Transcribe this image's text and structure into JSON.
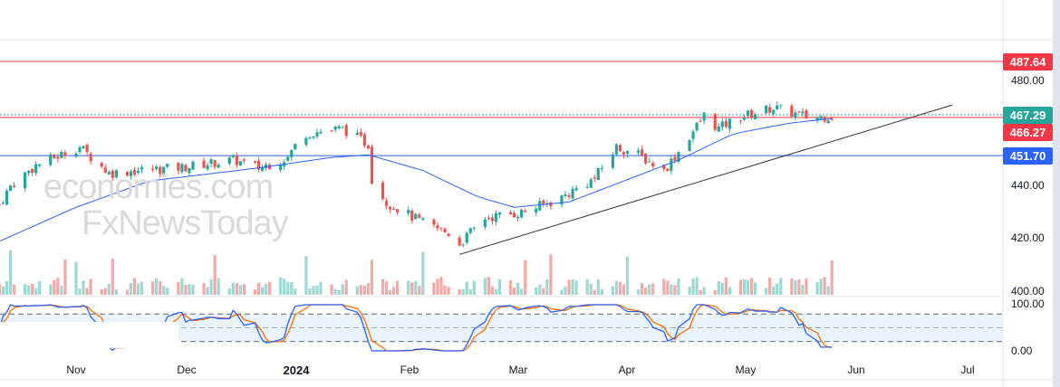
{
  "chart_data": {
    "type": "candlestick",
    "title": "",
    "price_axis": {
      "ticks": [
        "480.00",
        "440.00",
        "420.00",
        "400.00"
      ],
      "range": [
        400,
        490
      ]
    },
    "stoch_axis": {
      "ticks": [
        "100.00",
        "0.00"
      ],
      "range": [
        0,
        100
      ],
      "bands": [
        20,
        50,
        80
      ]
    },
    "x_ticks": [
      {
        "label": "Nov",
        "day": 0
      },
      {
        "label": "Dec",
        "day": 30
      },
      {
        "label": "2024",
        "day": 61
      },
      {
        "label": "Feb",
        "day": 92
      },
      {
        "label": "Mar",
        "day": 121
      },
      {
        "label": "Apr",
        "day": 152
      },
      {
        "label": "May",
        "day": 182
      },
      {
        "label": "Jun",
        "day": 213
      },
      {
        "label": "Jul",
        "day": 243
      }
    ],
    "price_path": [
      [
        -21,
        433
      ],
      [
        -18,
        440
      ],
      [
        -11,
        448
      ],
      [
        1,
        455
      ],
      [
        9,
        445
      ],
      [
        16,
        446
      ],
      [
        28,
        447
      ],
      [
        43,
        450
      ],
      [
        50,
        447
      ],
      [
        58,
        451
      ],
      [
        62,
        460
      ],
      [
        73,
        462
      ],
      [
        80,
        456
      ],
      [
        81,
        443
      ],
      [
        85,
        434
      ],
      [
        95,
        426
      ],
      [
        102,
        422
      ],
      [
        105,
        418
      ],
      [
        112,
        428
      ],
      [
        122,
        430
      ],
      [
        132,
        435
      ],
      [
        142,
        443
      ],
      [
        148,
        455
      ],
      [
        154,
        452
      ],
      [
        161,
        446
      ],
      [
        166,
        455
      ],
      [
        172,
        467
      ],
      [
        176,
        462
      ],
      [
        181,
        466
      ],
      [
        191,
        470
      ],
      [
        196,
        468
      ],
      [
        201,
        466
      ],
      [
        208,
        467
      ]
    ],
    "moving_average": [
      [
        -21,
        419
      ],
      [
        0,
        432
      ],
      [
        20,
        442
      ],
      [
        50,
        447
      ],
      [
        70,
        451
      ],
      [
        80,
        452
      ],
      [
        95,
        446
      ],
      [
        110,
        436
      ],
      [
        120,
        432
      ],
      [
        135,
        434
      ],
      [
        150,
        442
      ],
      [
        165,
        450
      ],
      [
        180,
        460
      ],
      [
        195,
        464
      ],
      [
        208,
        466
      ]
    ],
    "trendline": [
      [
        105,
        414
      ],
      [
        240,
        471
      ]
    ],
    "levels": [
      {
        "value": "487.64",
        "color": "#f23645",
        "style": "solid"
      },
      {
        "value": "467.29",
        "color": "#26a69a",
        "style": "dotted"
      },
      {
        "value": "466.27",
        "color": "#f23645",
        "style": "solid"
      },
      {
        "value": "451.70",
        "color": "#2962ff",
        "style": "solid"
      }
    ],
    "colors": {
      "up": "#26a69a",
      "down": "#ef5350",
      "ma": "#2962ff",
      "k": "#2962ff",
      "d": "#ff6d00"
    }
  },
  "watermark": {
    "line1": "economies.com",
    "line2": "FxNewsToday"
  }
}
